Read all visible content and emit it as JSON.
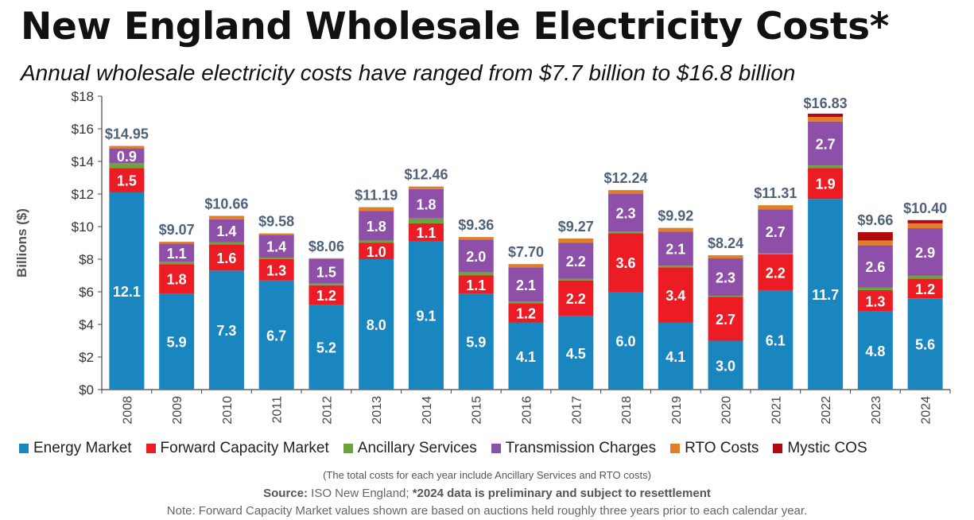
{
  "header": {
    "title": "New England Wholesale Electricity Costs*",
    "subtitle": "Annual wholesale electricity costs have ranged from $7.7 billion to $16.8 billion"
  },
  "footer": {
    "note_totals": "(The total costs for each year include Ancillary Services and RTO costs)",
    "source_label": "Source:",
    "source_text": " ISO New England; ",
    "source_bold": "*2024 data is preliminary and subject to resettlement",
    "note_fcm": "Note: Forward Capacity Market values shown are based on auctions held roughly three years prior to each calendar year."
  },
  "chart_data": {
    "type": "bar",
    "stacked": true,
    "title": "New England Wholesale Electricity Costs*",
    "ylabel": "Billions ($)",
    "xlabel": "",
    "ylim": [
      0,
      18
    ],
    "yticks": [
      "$0",
      "$2",
      "$4",
      "$6",
      "$8",
      "$10",
      "$12",
      "$14",
      "$16",
      "$18"
    ],
    "ytick_values": [
      0,
      2,
      4,
      6,
      8,
      10,
      12,
      14,
      16,
      18
    ],
    "grid": false,
    "legend_position": "bottom",
    "categories": [
      "2008",
      "2009",
      "2010",
      "2011",
      "2012",
      "2013",
      "2014",
      "2015",
      "2016",
      "2017",
      "2018",
      "2019",
      "2020",
      "2021",
      "2022",
      "2023",
      "2024"
    ],
    "totals": [
      14.95,
      9.07,
      10.66,
      9.58,
      8.06,
      11.19,
      12.46,
      9.36,
      7.7,
      9.27,
      12.24,
      9.92,
      8.24,
      11.31,
      16.83,
      9.66,
      10.4
    ],
    "total_labels": [
      "$14.95",
      "$9.07",
      "$10.66",
      "$9.58",
      "$8.06",
      "$11.19",
      "$12.46",
      "$9.36",
      "$7.70",
      "$9.27",
      "$12.24",
      "$9.92",
      "$8.24",
      "$11.31",
      "$16.83",
      "$9.66",
      "$10.40"
    ],
    "series": [
      {
        "name": "Energy Market",
        "color": "#1a86c0",
        "values": [
          12.1,
          5.9,
          7.3,
          6.7,
          5.2,
          8.0,
          9.1,
          5.9,
          4.1,
          4.5,
          6.0,
          4.1,
          3.0,
          6.1,
          11.7,
          4.8,
          5.6
        ],
        "labels": [
          "12.1",
          "5.9",
          "7.3",
          "6.7",
          "5.2",
          "8.0",
          "9.1",
          "5.9",
          "4.1",
          "4.5",
          "6.0",
          "4.1",
          "3.0",
          "6.1",
          "11.7",
          "4.8",
          "5.6"
        ]
      },
      {
        "name": "Forward Capacity Market",
        "color": "#ec1c24",
        "values": [
          1.5,
          1.8,
          1.6,
          1.3,
          1.2,
          1.0,
          1.1,
          1.1,
          1.2,
          2.2,
          3.6,
          3.4,
          2.7,
          2.2,
          1.9,
          1.3,
          1.2
        ],
        "labels": [
          "1.5",
          "1.8",
          "1.6",
          "1.3",
          "1.2",
          "1.0",
          "1.1",
          "1.1",
          "1.2",
          "2.2",
          "3.6",
          "3.4",
          "2.7",
          "2.2",
          "1.9",
          "1.3",
          "1.2"
        ]
      },
      {
        "name": "Ancillary Services",
        "color": "#6ba539",
        "values": [
          0.3,
          0.15,
          0.15,
          0.1,
          0.1,
          0.15,
          0.3,
          0.2,
          0.1,
          0.1,
          0.1,
          0.1,
          0.05,
          0.05,
          0.15,
          0.15,
          0.2
        ],
        "labels": []
      },
      {
        "name": "Transmission Charges",
        "color": "#8e4fa8",
        "values": [
          0.9,
          1.1,
          1.4,
          1.4,
          1.5,
          1.8,
          1.8,
          2.0,
          2.1,
          2.2,
          2.3,
          2.1,
          2.3,
          2.7,
          2.7,
          2.6,
          2.9
        ],
        "labels": [
          "0.9",
          "1.1",
          "1.4",
          "1.4",
          "1.5",
          "1.8",
          "1.8",
          "2.0",
          "2.1",
          "2.2",
          "2.3",
          "2.1",
          "2.3",
          "2.7",
          "2.7",
          "2.6",
          "2.9"
        ]
      },
      {
        "name": "RTO Costs",
        "color": "#e07f27",
        "values": [
          0.15,
          0.12,
          0.21,
          0.08,
          0.06,
          0.24,
          0.16,
          0.16,
          0.2,
          0.27,
          0.24,
          0.22,
          0.19,
          0.26,
          0.28,
          0.3,
          0.3
        ],
        "labels": []
      },
      {
        "name": "Mystic COS",
        "color": "#b00a0e",
        "values": [
          0,
          0,
          0,
          0,
          0,
          0,
          0,
          0,
          0,
          0,
          0,
          0,
          0,
          0,
          0.2,
          0.51,
          0.2
        ],
        "labels": []
      }
    ]
  }
}
